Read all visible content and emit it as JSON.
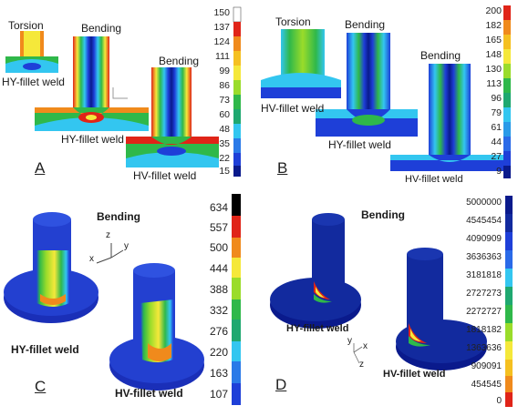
{
  "panels": {
    "A": {
      "letter": "A",
      "labels": {
        "torsion": "Torsion",
        "bending1": "Bending",
        "bending2": "Bending",
        "hy1": "HY-fillet weld",
        "hy2": "HY-fillet weld",
        "hv": "HV-fillet weld"
      },
      "scale": [
        "150",
        "137",
        "124",
        "111",
        "99",
        "86",
        "73",
        "60",
        "48",
        "35",
        "22",
        "15"
      ]
    },
    "B": {
      "letter": "B",
      "labels": {
        "torsion": "Torsion",
        "bending1": "Bending",
        "bending2": "Bending",
        "hv1": "HV-fillet weld",
        "hy": "HY-fillet weld",
        "hv2": "HV-fillet weld"
      },
      "scale": [
        "200",
        "182",
        "165",
        "148",
        "130",
        "113",
        "96",
        "79",
        "61",
        "44",
        "27",
        "9"
      ]
    },
    "C": {
      "letter": "C",
      "labels": {
        "bending": "Bending",
        "hy": "HY-fillet weld",
        "hv": "HV-fillet weld"
      },
      "axes": {
        "z": "z",
        "y": "y",
        "x": "x"
      },
      "scale": [
        "634",
        "557",
        "500",
        "444",
        "388",
        "332",
        "276",
        "220",
        "163",
        "107"
      ]
    },
    "D": {
      "letter": "D",
      "labels": {
        "bending": "Bending",
        "hy": "HY-fillet weld",
        "hv": "HV-fillet weld"
      },
      "axes": {
        "z": "z",
        "y": "y",
        "x": "x"
      },
      "scale": [
        "5000000",
        "4545454",
        "4090909",
        "3636363",
        "3181818",
        "2727273",
        "2272727",
        "1818182",
        "1363636",
        "909091",
        "454545",
        "0"
      ]
    }
  },
  "colors": {
    "dark_blue": "#0a1a8c",
    "blue": "#1e3fd8",
    "cyan": "#33c6f0",
    "green": "#2fb84a",
    "yellow": "#f5e83a",
    "orange": "#f08a1c",
    "red": "#e02418",
    "black": "#000000"
  }
}
